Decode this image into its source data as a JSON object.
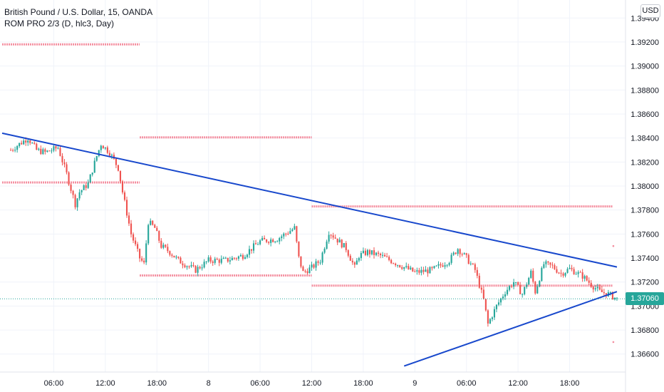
{
  "legend": {
    "symbol": "British Pound / U.S. Dollar, 15, OANDA",
    "indicator": "ROM PRO 2/3 (D, hlc3, Day)"
  },
  "currency": "USD",
  "last_price": "1.37060",
  "colors": {
    "up": "#26a69a",
    "down": "#ef5350",
    "trendline": "#1848cc",
    "levels": "#f48fa0",
    "price_line": "#26a69a"
  },
  "chart_data": {
    "type": "candlestick",
    "y_ticks": [
      "1.36600",
      "1.36800",
      "1.37000",
      "1.37200",
      "1.37400",
      "1.37600",
      "1.37800",
      "1.38000",
      "1.38200",
      "1.38400",
      "1.38600",
      "1.38800",
      "1.39000",
      "1.39200",
      "1.39400"
    ],
    "x_ticks": [
      "06:00",
      "12:00",
      "18:00",
      "8",
      "06:00",
      "12:00",
      "18:00",
      "9",
      "06:00",
      "12:00",
      "18:00"
    ],
    "ylim": [
      1.3645,
      1.3955
    ],
    "x_time_range": [
      "7 01:00",
      "9 23:30"
    ],
    "x_tick_times": [
      "7 06:00",
      "7 12:00",
      "7 18:00",
      "8 00:00",
      "8 06:00",
      "8 12:00",
      "8 18:00",
      "9 00:00",
      "9 06:00",
      "9 12:00",
      "9 18:00"
    ],
    "close_path": [
      [
        "7 01:00",
        1.383
      ],
      [
        "7 03:00",
        1.384
      ],
      [
        "7 04:00",
        1.383
      ],
      [
        "7 05:00",
        1.3828
      ],
      [
        "7 06:30",
        1.3832
      ],
      [
        "7 07:30",
        1.381
      ],
      [
        "7 08:30",
        1.3785
      ],
      [
        "7 09:00",
        1.3795
      ],
      [
        "7 10:00",
        1.3802
      ],
      [
        "7 11:00",
        1.3825
      ],
      [
        "7 11:30",
        1.3835
      ],
      [
        "7 12:30",
        1.3828
      ],
      [
        "7 13:30",
        1.3815
      ],
      [
        "7 14:00",
        1.3795
      ],
      [
        "7 15:00",
        1.376
      ],
      [
        "7 16:00",
        1.374
      ],
      [
        "7 16:30",
        1.3735
      ],
      [
        "7 17:00",
        1.377
      ],
      [
        "7 17:45",
        1.3765
      ],
      [
        "7 18:30",
        1.375
      ],
      [
        "7 19:30",
        1.3745
      ],
      [
        "7 20:30",
        1.3738
      ],
      [
        "7 21:30",
        1.3734
      ],
      [
        "7 22:30",
        1.373
      ],
      [
        "8 00:00",
        1.3738
      ],
      [
        "8 02:00",
        1.3738
      ],
      [
        "8 04:00",
        1.3742
      ],
      [
        "8 06:00",
        1.3754
      ],
      [
        "8 08:00",
        1.3756
      ],
      [
        "8 10:00",
        1.3765
      ],
      [
        "8 10:30",
        1.374
      ],
      [
        "8 11:00",
        1.3728
      ],
      [
        "8 12:00",
        1.3732
      ],
      [
        "8 13:00",
        1.3738
      ],
      [
        "8 14:00",
        1.3762
      ],
      [
        "8 15:00",
        1.3755
      ],
      [
        "8 16:00",
        1.3748
      ],
      [
        "8 17:00",
        1.3732
      ],
      [
        "8 17:30",
        1.3742
      ],
      [
        "8 18:30",
        1.3745
      ],
      [
        "8 20:00",
        1.3742
      ],
      [
        "8 22:00",
        1.3735
      ],
      [
        "9 00:00",
        1.3728
      ],
      [
        "9 02:00",
        1.373
      ],
      [
        "9 04:00",
        1.3738
      ],
      [
        "9 05:00",
        1.3748
      ],
      [
        "9 06:00",
        1.374
      ],
      [
        "9 07:00",
        1.373
      ],
      [
        "9 08:00",
        1.3705
      ],
      [
        "9 08:30",
        1.3685
      ],
      [
        "9 09:30",
        1.37
      ],
      [
        "9 10:30",
        1.3712
      ],
      [
        "9 11:30",
        1.372
      ],
      [
        "9 12:30",
        1.371
      ],
      [
        "9 13:30",
        1.3728
      ],
      [
        "9 14:00",
        1.3712
      ],
      [
        "9 15:00",
        1.3735
      ],
      [
        "9 16:00",
        1.3733
      ],
      [
        "9 17:00",
        1.3727
      ],
      [
        "9 18:00",
        1.3731
      ],
      [
        "9 19:30",
        1.3725
      ],
      [
        "9 20:30",
        1.3718
      ],
      [
        "9 21:30",
        1.3712
      ],
      [
        "9 22:30",
        1.371
      ],
      [
        "9 23:30",
        1.3706
      ]
    ],
    "trendlines": [
      {
        "name": "descending",
        "from": [
          "7 00:00",
          1.3844
        ],
        "to": [
          "9 23:30",
          1.37325
        ]
      },
      {
        "name": "ascending",
        "from": [
          "8 22:45",
          1.365
        ],
        "to": [
          "9 23:30",
          1.3712
        ]
      }
    ],
    "levels": [
      {
        "from": "7 00:00",
        "to": "7 16:00",
        "price": 1.3918
      },
      {
        "from": "7 16:00",
        "to": "8 12:00",
        "price": 1.38405
      },
      {
        "from": "7 00:00",
        "to": "7 16:00",
        "price": 1.3803
      },
      {
        "from": "8 12:00",
        "to": "9 23:00",
        "price": 1.3783
      },
      {
        "from": "7 16:00",
        "to": "8 12:00",
        "price": 1.37255
      },
      {
        "from": "8 12:00",
        "to": "9 23:00",
        "price": 1.3717
      },
      {
        "from": "9 23:00",
        "to": "9 23:00",
        "price": 1.375
      },
      {
        "from": "9 23:00",
        "to": "9 23:00",
        "price": 1.367
      }
    ]
  }
}
